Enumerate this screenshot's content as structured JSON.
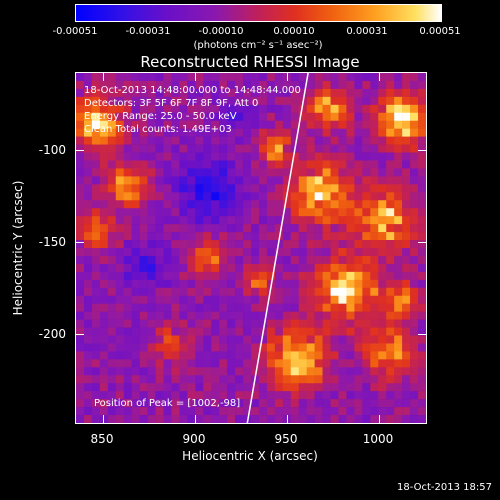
{
  "colorbar": {
    "ticks": [
      "-0.00051",
      "-0.00031",
      "-0.00010",
      "0.00010",
      "0.00031",
      "0.00051"
    ],
    "unit": "(photons cm⁻² s⁻¹ asec⁻²)"
  },
  "chart_data": {
    "type": "heatmap",
    "title": "Reconstructed RHESSI Image",
    "xlabel": "Heliocentric X (arcsec)",
    "ylabel": "Heliocentric Y (arcsec)",
    "xlim": [
      835,
      1025
    ],
    "ylim": [
      -248,
      -58
    ],
    "x_ticks": [
      "850",
      "900",
      "950",
      "1000"
    ],
    "y_ticks": [
      "-100",
      "-150",
      "-200"
    ],
    "colorbar_range": [
      -0.00051,
      0.00051
    ],
    "annotations": {
      "time": "18-Oct-2013 14:48:00.000 to 14:48:44.000",
      "detectors": "Detectors: 3F 5F 6F 7F 8F 9F, Att 0",
      "energy": "Energy Range: 25.0 - 50.0 keV",
      "clean": "Clean    Total counts: 1.49E+03",
      "peak": "Position of Peak = [1002,-98]"
    },
    "limb_line": {
      "x1": 961,
      "y1": -58,
      "x2": 928,
      "y2": -248
    }
  },
  "footer": {
    "timestamp": "18-Oct-2013 18:57"
  }
}
